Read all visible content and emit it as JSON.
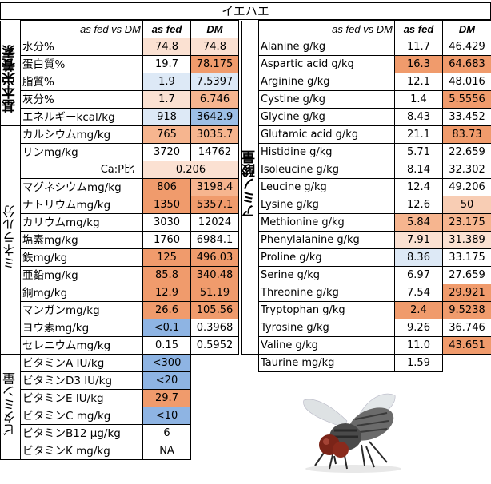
{
  "title": "イエハエ",
  "left": {
    "header": {
      "label": "as fed vs DM",
      "asfed": "as fed",
      "dm": "DM"
    },
    "groups": {
      "basic": "基本栄養素",
      "mineral": "ミネラル分",
      "vitamin": "ビタミン量"
    },
    "basic": [
      {
        "name": "水分%",
        "asfed": "74.8",
        "dm": "74.8"
      },
      {
        "name": "蛋白質%",
        "asfed": "19.7",
        "dm": "78.175"
      },
      {
        "name": "脂質%",
        "asfed": "1.9",
        "dm": "7.5397"
      },
      {
        "name": "灰分%",
        "asfed": "1.7",
        "dm": "6.746"
      },
      {
        "name": "エネルギーkcal/kg",
        "asfed": "918",
        "dm": "3642.9"
      }
    ],
    "mineral": [
      {
        "name": "カルシウムmg/kg",
        "asfed": "765",
        "dm": "3035.7"
      },
      {
        "name": "リンmg/kg",
        "asfed": "3720",
        "dm": "14762"
      },
      {
        "name": "Ca:P比",
        "ratio": "0.206"
      },
      {
        "name": "マグネシウムmg/kg",
        "asfed": "806",
        "dm": "3198.4"
      },
      {
        "name": "ナトリウムmg/kg",
        "asfed": "1350",
        "dm": "5357.1"
      },
      {
        "name": "カリウムmg/kg",
        "asfed": "3030",
        "dm": "12024"
      },
      {
        "name": "塩素mg/kg",
        "asfed": "1760",
        "dm": "6984.1"
      },
      {
        "name": "鉄mg/kg",
        "asfed": "125",
        "dm": "496.03"
      },
      {
        "name": "亜鉛mg/kg",
        "asfed": "85.8",
        "dm": "340.48"
      },
      {
        "name": "銅mg/kg",
        "asfed": "12.9",
        "dm": "51.19"
      },
      {
        "name": "マンガンmg/kg",
        "asfed": "26.6",
        "dm": "105.56"
      },
      {
        "name": "ヨウ素mg/kg",
        "asfed": "<0.1",
        "dm": "0.3968"
      },
      {
        "name": "セレニウムmg/kg",
        "asfed": "0.15",
        "dm": "0.5952"
      }
    ],
    "vitamin": [
      {
        "name": "ビタミンA IU/kg",
        "asfed": "<300"
      },
      {
        "name": "ビタミンD3 IU/kg",
        "asfed": "<20"
      },
      {
        "name": "ビタミンE IU/kg",
        "asfed": "29.7"
      },
      {
        "name": "ビタミンC mg/kg",
        "asfed": "<10"
      },
      {
        "name": "ビタミンB12 μg/kg",
        "asfed": "6"
      },
      {
        "name": "ビタミンK mg/kg",
        "asfed": "NA"
      }
    ]
  },
  "right": {
    "header": {
      "label": "as fed vs DM",
      "asfed": "as fed",
      "dm": "DM"
    },
    "group": "アミノ酸量",
    "amino": [
      {
        "name": "Alanine g/kg",
        "asfed": "11.7",
        "dm": "46.429"
      },
      {
        "name": "Aspartic acid g/kg",
        "asfed": "16.3",
        "dm": "64.683"
      },
      {
        "name": "Arginine  g/kg",
        "asfed": "12.1",
        "dm": "48.016"
      },
      {
        "name": "Cystine g/kg",
        "asfed": "1.4",
        "dm": "5.5556"
      },
      {
        "name": "Glycine g/kg",
        "asfed": "8.43",
        "dm": "33.452"
      },
      {
        "name": "Glutamic acid g/kg",
        "asfed": "21.1",
        "dm": "83.73"
      },
      {
        "name": "Histidine g/kg",
        "asfed": "5.71",
        "dm": "22.659"
      },
      {
        "name": "Isoleucine g/kg",
        "asfed": "8.14",
        "dm": "32.302"
      },
      {
        "name": "Leucine g/kg",
        "asfed": "12.4",
        "dm": "49.206"
      },
      {
        "name": "Lysine g/kg",
        "asfed": "12.6",
        "dm": "50"
      },
      {
        "name": "Methionine g/kg",
        "asfed": "5.84",
        "dm": "23.175"
      },
      {
        "name": "Phenylalanine g/kg",
        "asfed": "7.91",
        "dm": "31.389"
      },
      {
        "name": "Proline g/kg",
        "asfed": "8.36",
        "dm": "33.175"
      },
      {
        "name": "Serine g/kg",
        "asfed": "6.97",
        "dm": "27.659"
      },
      {
        "name": "Threonine g/kg",
        "asfed": "7.54",
        "dm": "29.921"
      },
      {
        "name": "Tryptophan g/kg",
        "asfed": "2.4",
        "dm": "9.5238"
      },
      {
        "name": "Tyrosine g/kg",
        "asfed": "9.26",
        "dm": "36.746"
      },
      {
        "name": "Valine g/kg",
        "asfed": "11.0",
        "dm": "43.651"
      }
    ],
    "taurine": {
      "name": "Taurine mg/kg",
      "asfed": "1.59"
    }
  },
  "image": {
    "subject": "housefly-photo"
  },
  "colors": {
    "orange_light": "#fbe1d2",
    "orange_mid": "#f6b58f",
    "orange_dark": "#f09b6c",
    "blue_light": "#dde9f6",
    "blue_mid": "#9dbfe6"
  }
}
